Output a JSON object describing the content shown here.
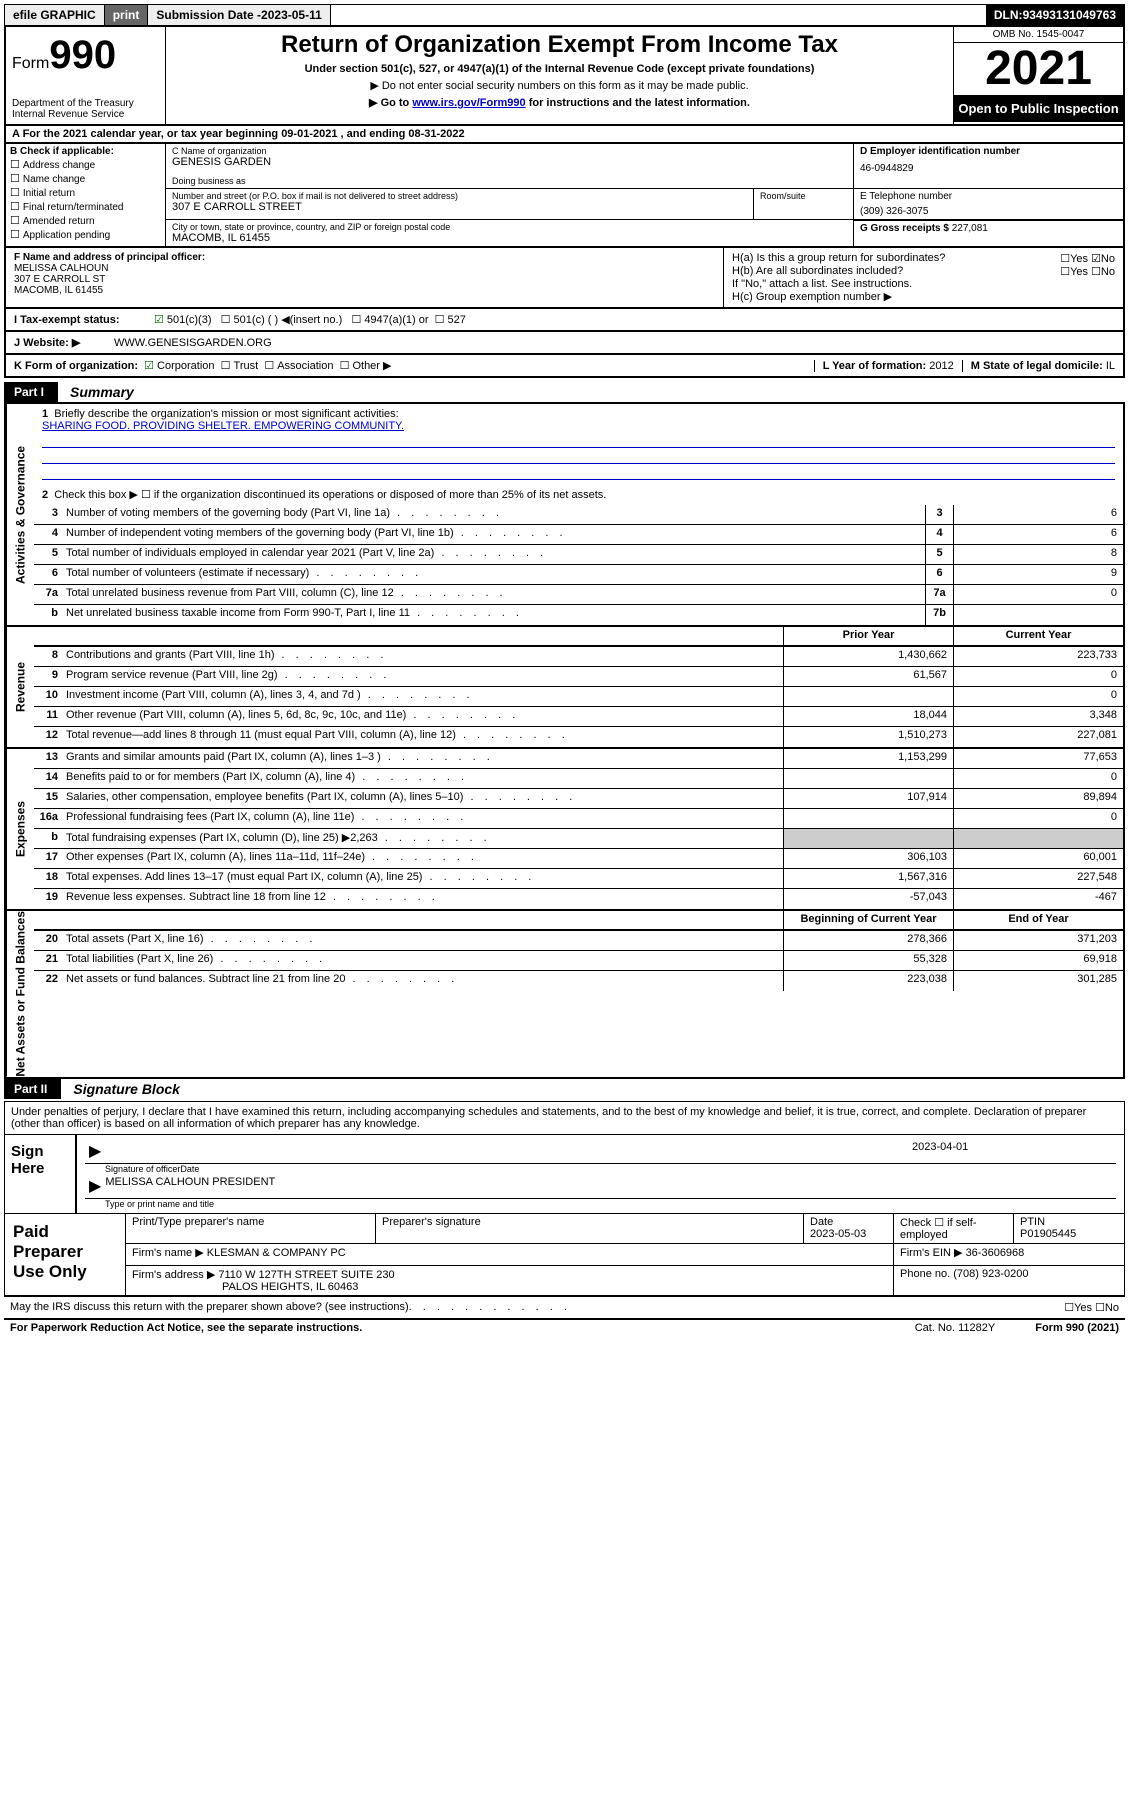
{
  "topbar": {
    "efile": "efile GRAPHIC",
    "print": "print",
    "sub_label": "Submission Date - ",
    "sub_date": "2023-05-11",
    "dln_label": "DLN: ",
    "dln": "93493131049763"
  },
  "header": {
    "form_word": "Form",
    "form_num": "990",
    "title": "Return of Organization Exempt From Income Tax",
    "sub": "Under section 501(c), 527, or 4947(a)(1) of the Internal Revenue Code (except private foundations)",
    "note1": "▶ Do not enter social security numbers on this form as it may be made public.",
    "note2_pre": "▶ Go to ",
    "note2_link": "www.irs.gov/Form990",
    "note2_post": " for instructions and the latest information.",
    "dept": "Department of the Treasury\nInternal Revenue Service",
    "omb": "OMB No. 1545-0047",
    "year": "2021",
    "open": "Open to Public Inspection"
  },
  "rowA": "A For the 2021 calendar year, or tax year beginning 09-01-2021   , and ending 08-31-2022",
  "colB": {
    "label": "B Check if applicable:",
    "items": [
      "Address change",
      "Name change",
      "Initial return",
      "Final return/terminated",
      "Amended return",
      "Application pending"
    ]
  },
  "entity": {
    "c_label": "C Name of organization",
    "c_name": "GENESIS GARDEN",
    "dba_label": "Doing business as",
    "addr_label": "Number and street (or P.O. box if mail is not delivered to street address)",
    "room_label": "Room/suite",
    "addr": "307 E CARROLL STREET",
    "city_label": "City or town, state or province, country, and ZIP or foreign postal code",
    "city": "MACOMB, IL  61455",
    "d_label": "D Employer identification number",
    "ein": "46-0944829",
    "e_label": "E Telephone number",
    "phone": "(309) 326-3075",
    "g_label": "G Gross receipts $ ",
    "gross": "227,081"
  },
  "f": {
    "label": "F Name and address of principal officer:",
    "name": "MELISSA CALHOUN",
    "addr1": "307 E CARROLL ST",
    "addr2": "MACOMB, IL  61455"
  },
  "h": {
    "a": "H(a)  Is this a group return for subordinates?",
    "a_ans": "☐Yes ☑No",
    "b": "H(b)  Are all subordinates included?",
    "b_ans": "☐Yes ☐No",
    "b_note": "If \"No,\" attach a list. See instructions.",
    "c": "H(c)  Group exemption number ▶"
  },
  "rowI": {
    "label": "I   Tax-exempt status:",
    "opt1": "501(c)(3)",
    "opt2": "501(c) (  ) ◀(insert no.)",
    "opt3": "4947(a)(1) or",
    "opt4": "527"
  },
  "rowJ": {
    "label": "J   Website: ▶",
    "val": "WWW.GENESISGARDEN.ORG"
  },
  "rowK": {
    "label": "K Form of organization:",
    "opts": [
      "Corporation",
      "Trust",
      "Association",
      "Other ▶"
    ],
    "l_label": "L Year of formation: ",
    "l_val": "2012",
    "m_label": "M State of legal domicile: ",
    "m_val": "IL"
  },
  "partI": {
    "tag": "Part I",
    "title": "Summary"
  },
  "summary": {
    "side_gov": "Activities & Governance",
    "side_rev": "Revenue",
    "side_exp": "Expenses",
    "side_net": "Net Assets or Fund Balances",
    "q1": "Briefly describe the organization's mission or most significant activities:",
    "mission": "SHARING FOOD. PROVIDING SHELTER. EMPOWERING COMMUNITY.",
    "q2": "Check this box ▶ ☐  if the organization discontinued its operations or disposed of more than 25% of its net assets.",
    "rows_gov": [
      {
        "n": "3",
        "d": "Number of voting members of the governing body (Part VI, line 1a)",
        "box": "3",
        "v": "6"
      },
      {
        "n": "4",
        "d": "Number of independent voting members of the governing body (Part VI, line 1b)",
        "box": "4",
        "v": "6"
      },
      {
        "n": "5",
        "d": "Total number of individuals employed in calendar year 2021 (Part V, line 2a)",
        "box": "5",
        "v": "8"
      },
      {
        "n": "6",
        "d": "Total number of volunteers (estimate if necessary)",
        "box": "6",
        "v": "9"
      },
      {
        "n": "7a",
        "d": "Total unrelated business revenue from Part VIII, column (C), line 12",
        "box": "7a",
        "v": "0"
      },
      {
        "n": "b",
        "d": "Net unrelated business taxable income from Form 990-T, Part I, line 11",
        "box": "7b",
        "v": ""
      }
    ],
    "hdr_prior": "Prior Year",
    "hdr_curr": "Current Year",
    "rows_rev": [
      {
        "n": "8",
        "d": "Contributions and grants (Part VIII, line 1h)",
        "p": "1,430,662",
        "c": "223,733"
      },
      {
        "n": "9",
        "d": "Program service revenue (Part VIII, line 2g)",
        "p": "61,567",
        "c": "0"
      },
      {
        "n": "10",
        "d": "Investment income (Part VIII, column (A), lines 3, 4, and 7d )",
        "p": "",
        "c": "0"
      },
      {
        "n": "11",
        "d": "Other revenue (Part VIII, column (A), lines 5, 6d, 8c, 9c, 10c, and 11e)",
        "p": "18,044",
        "c": "3,348"
      },
      {
        "n": "12",
        "d": "Total revenue—add lines 8 through 11 (must equal Part VIII, column (A), line 12)",
        "p": "1,510,273",
        "c": "227,081"
      }
    ],
    "rows_exp": [
      {
        "n": "13",
        "d": "Grants and similar amounts paid (Part IX, column (A), lines 1–3 )",
        "p": "1,153,299",
        "c": "77,653"
      },
      {
        "n": "14",
        "d": "Benefits paid to or for members (Part IX, column (A), line 4)",
        "p": "",
        "c": "0"
      },
      {
        "n": "15",
        "d": "Salaries, other compensation, employee benefits (Part IX, column (A), lines 5–10)",
        "p": "107,914",
        "c": "89,894"
      },
      {
        "n": "16a",
        "d": "Professional fundraising fees (Part IX, column (A), line 11e)",
        "p": "",
        "c": "0"
      },
      {
        "n": "b",
        "d": "Total fundraising expenses (Part IX, column (D), line 25) ▶2,263",
        "p": "grey",
        "c": "grey"
      },
      {
        "n": "17",
        "d": "Other expenses (Part IX, column (A), lines 11a–11d, 11f–24e)",
        "p": "306,103",
        "c": "60,001"
      },
      {
        "n": "18",
        "d": "Total expenses. Add lines 13–17 (must equal Part IX, column (A), line 25)",
        "p": "1,567,316",
        "c": "227,548"
      },
      {
        "n": "19",
        "d": "Revenue less expenses. Subtract line 18 from line 12",
        "p": "-57,043",
        "c": "-467"
      }
    ],
    "hdr_beg": "Beginning of Current Year",
    "hdr_end": "End of Year",
    "rows_net": [
      {
        "n": "20",
        "d": "Total assets (Part X, line 16)",
        "p": "278,366",
        "c": "371,203"
      },
      {
        "n": "21",
        "d": "Total liabilities (Part X, line 26)",
        "p": "55,328",
        "c": "69,918"
      },
      {
        "n": "22",
        "d": "Net assets or fund balances. Subtract line 21 from line 20",
        "p": "223,038",
        "c": "301,285"
      }
    ]
  },
  "partII": {
    "tag": "Part II",
    "title": "Signature Block"
  },
  "sig": {
    "decl": "Under penalties of perjury, I declare that I have examined this return, including accompanying schedules and statements, and to the best of my knowledge and belief, it is true, correct, and complete. Declaration of preparer (other than officer) is based on all information of which preparer has any knowledge.",
    "sign_here": "Sign Here",
    "sig_officer": "Signature of officer",
    "date_label": "Date",
    "date": "2023-04-01",
    "name_title": "MELISSA CALHOUN  PRESIDENT",
    "type_label": "Type or print name and title"
  },
  "prep": {
    "label": "Paid Preparer Use Only",
    "h1": "Print/Type preparer's name",
    "h2": "Preparer's signature",
    "h3": "Date",
    "h3v": "2023-05-03",
    "h4": "Check ☐ if self-employed",
    "h5": "PTIN",
    "h5v": "P01905445",
    "firm_label": "Firm's name   ▶",
    "firm": "KLESMAN & COMPANY PC",
    "ein_label": "Firm's EIN ▶",
    "ein": "36-3606968",
    "addr_label": "Firm's address ▶",
    "addr1": "7110 W 127TH STREET SUITE 230",
    "addr2": "PALOS HEIGHTS, IL  60463",
    "phone_label": "Phone no.",
    "phone": "(708) 923-0200"
  },
  "footer": {
    "discuss": "May the IRS discuss this return with the preparer shown above? (see instructions)",
    "yn": "☐Yes   ☐No",
    "paperwork": "For Paperwork Reduction Act Notice, see the separate instructions.",
    "cat": "Cat. No. 11282Y",
    "form": "Form 990 (2021)"
  }
}
